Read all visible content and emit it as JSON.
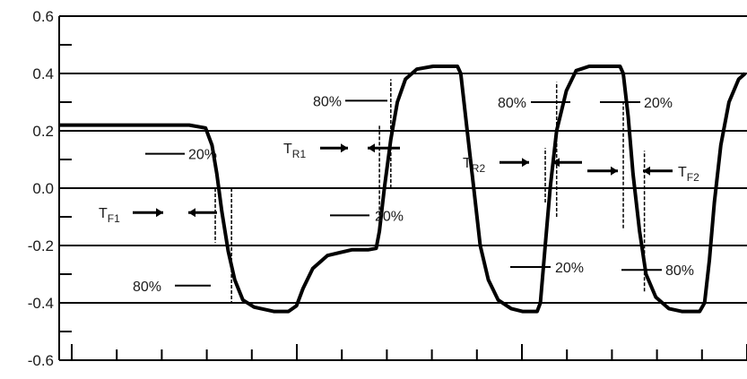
{
  "chart_data": {
    "type": "line",
    "title": "",
    "xlabel": "",
    "ylabel": "",
    "ylim": [
      -0.6,
      0.6
    ],
    "yticks": [
      "0.6",
      "0.4",
      "0.2",
      "0.0",
      "-0.2",
      "-0.4",
      "-0.6"
    ],
    "grid": true,
    "series": [
      {
        "values": [
          [
            0,
            0.22
          ],
          [
            10,
            0.22
          ],
          [
            20,
            0.22
          ],
          [
            40,
            0.22
          ],
          [
            60,
            0.22
          ],
          [
            80,
            0.22
          ],
          [
            90,
            0.21
          ],
          [
            94,
            0.15
          ],
          [
            97,
            0.05
          ],
          [
            100,
            -0.08
          ],
          [
            104,
            -0.22
          ],
          [
            108,
            -0.32
          ],
          [
            113,
            -0.39
          ],
          [
            120,
            -0.415
          ],
          [
            132,
            -0.43
          ],
          [
            141,
            -0.43
          ],
          [
            146,
            -0.41
          ],
          [
            150,
            -0.35
          ],
          [
            156,
            -0.28
          ],
          [
            165,
            -0.235
          ],
          [
            180,
            -0.215
          ],
          [
            190,
            -0.215
          ],
          [
            195,
            -0.21
          ],
          [
            197,
            -0.15
          ],
          [
            200,
            -0.0
          ],
          [
            204,
            0.17
          ],
          [
            208,
            0.3
          ],
          [
            213,
            0.38
          ],
          [
            220,
            0.415
          ],
          [
            230,
            0.425
          ],
          [
            245,
            0.425
          ],
          [
            247,
            0.4
          ],
          [
            251,
            0.2
          ],
          [
            255,
            0.0
          ],
          [
            259,
            -0.2
          ],
          [
            264,
            -0.32
          ],
          [
            270,
            -0.39
          ],
          [
            278,
            -0.42
          ],
          [
            285,
            -0.43
          ],
          [
            294,
            -0.43
          ],
          [
            296,
            -0.4
          ],
          [
            299,
            -0.2
          ],
          [
            302,
            0.0
          ],
          [
            306,
            0.2
          ],
          [
            312,
            0.34
          ],
          [
            318,
            0.41
          ],
          [
            326,
            0.425
          ],
          [
            345,
            0.425
          ],
          [
            347,
            0.4
          ],
          [
            350,
            0.25
          ],
          [
            353,
            0.05
          ],
          [
            357,
            -0.15
          ],
          [
            361,
            -0.3
          ],
          [
            367,
            -0.38
          ],
          [
            375,
            -0.42
          ],
          [
            383,
            -0.43
          ],
          [
            394,
            -0.43
          ],
          [
            397,
            -0.4
          ],
          [
            400,
            -0.25
          ],
          [
            403,
            -0.05
          ],
          [
            407,
            0.15
          ],
          [
            412,
            0.3
          ],
          [
            418,
            0.38
          ],
          [
            422,
            0.4
          ]
        ]
      }
    ],
    "annotations": [
      {
        "label": "T",
        "sub": "F1",
        "x": 98,
        "y": -0.085
      },
      {
        "label": "T",
        "sub": "R1",
        "x": 198,
        "y": 0.14
      },
      {
        "label": "T",
        "sub": "R2",
        "x": 300,
        "y": 0.09
      },
      {
        "label": "T",
        "sub": "F2",
        "x": 348,
        "y": 0.06
      },
      {
        "label": "20%",
        "x": 94,
        "y": 0.12
      },
      {
        "label": "80%",
        "x": 106,
        "y": -0.34
      },
      {
        "label": "80%",
        "x": 208,
        "y": 0.305
      },
      {
        "label": "20%",
        "x": 198,
        "y": -0.095
      },
      {
        "label": "80%",
        "x": 312,
        "y": 0.3
      },
      {
        "label": "20%",
        "x": 302,
        "y": -0.275
      },
      {
        "label": "20%",
        "x": 345,
        "y": 0.3
      },
      {
        "label": "80%",
        "x": 360,
        "y": -0.285
      }
    ],
    "colors": {
      "line": "#000000",
      "grid": "#000000",
      "text": "#1a1a1a"
    }
  }
}
